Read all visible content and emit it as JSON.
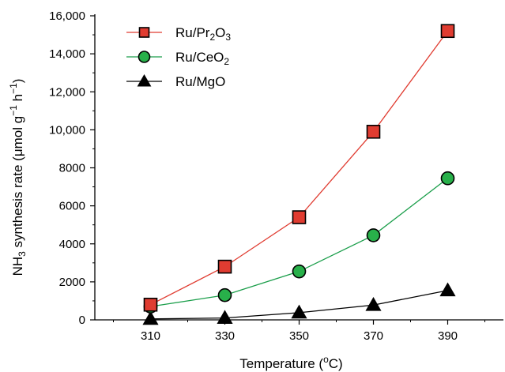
{
  "chart_data": {
    "type": "line",
    "title": "",
    "xlabel": "Temperature (oC)",
    "ylabel": "NH3 synthesis rate (μmol g−1 h−1)",
    "x": [
      310,
      330,
      350,
      370,
      390
    ],
    "xlim": [
      295,
      405
    ],
    "ylim": [
      0,
      16000
    ],
    "x_ticks": [
      {
        "value": 310,
        "label": "310"
      },
      {
        "value": 330,
        "label": "330"
      },
      {
        "value": 350,
        "label": "350"
      },
      {
        "value": 370,
        "label": "370"
      },
      {
        "value": 390,
        "label": "390"
      }
    ],
    "y_ticks": [
      {
        "value": 0,
        "label": "0"
      },
      {
        "value": 2000,
        "label": "2000"
      },
      {
        "value": 4000,
        "label": "4000"
      },
      {
        "value": 6000,
        "label": "6000"
      },
      {
        "value": 8000,
        "label": "8000"
      },
      {
        "value": 10000,
        "label": "10,000"
      },
      {
        "value": 12000,
        "label": "12,000"
      },
      {
        "value": 14000,
        "label": "14,000"
      },
      {
        "value": 16000,
        "label": "16,000"
      }
    ],
    "grid": false,
    "legend_position": "top-left",
    "series": [
      {
        "name": "Ru/Pr2O3",
        "color": "#e03c31",
        "marker": "square",
        "marker_color": "#e03c31",
        "values": [
          800,
          2800,
          5400,
          9900,
          15200
        ]
      },
      {
        "name": "Ru/CeO2",
        "color": "#1a9e4a",
        "marker": "circle",
        "marker_color": "#28b04a",
        "values": [
          700,
          1300,
          2550,
          4450,
          7450
        ]
      },
      {
        "name": "Ru/MgO",
        "color": "#000000",
        "marker": "triangle",
        "marker_color": "#000000",
        "values": [
          50,
          100,
          380,
          780,
          1550
        ]
      }
    ]
  }
}
